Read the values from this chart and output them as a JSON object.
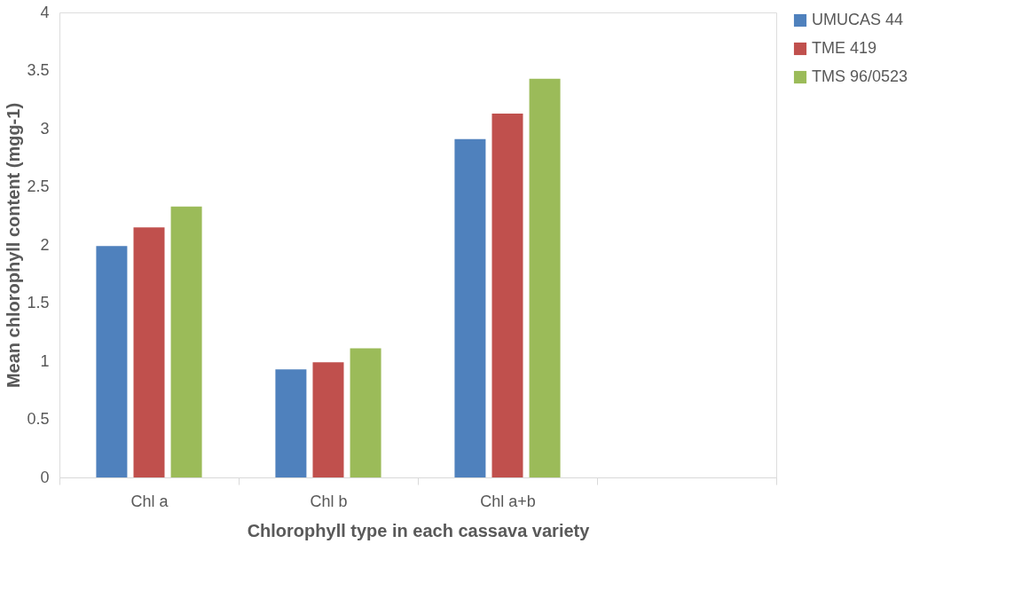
{
  "chart_data": {
    "type": "bar",
    "xlabel": "Chlorophyll type in each cassava variety",
    "ylabel": "Mean chlorophyll content (mgg-1)",
    "categories": [
      "Chl a",
      "Chl b",
      "Chl a+b",
      null
    ],
    "series": [
      {
        "name": "UMUCAS 44",
        "color": "#4f81bd",
        "values": [
          1.99,
          0.93,
          2.91,
          null
        ]
      },
      {
        "name": "TME 419",
        "color": "#c0504d",
        "values": [
          2.15,
          0.99,
          3.13,
          null
        ]
      },
      {
        "name": "TMS 96/0523",
        "color": "#9bbb59",
        "values": [
          2.33,
          1.11,
          3.43,
          null
        ]
      }
    ],
    "ylim": [
      0,
      4
    ],
    "yticks": [
      0,
      0.5,
      1,
      1.5,
      2,
      2.5,
      3,
      3.5,
      4
    ],
    "grid": false,
    "legend": "right"
  }
}
